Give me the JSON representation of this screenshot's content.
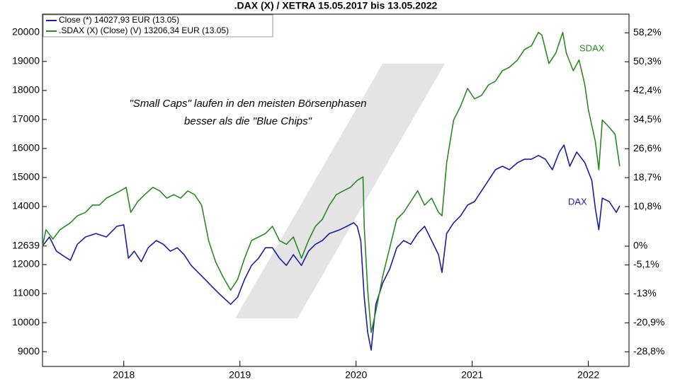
{
  "chart_data": {
    "type": "line",
    "title": ".DAX (X) / XETRA 15.05.2017 bis 13.05.2022",
    "annotations": [
      "\"Small Caps\" laufen in den meisten Börsenphasen",
      "besser als die \"Blue Chips\"",
      "SDAX",
      "DAX"
    ],
    "xlim": [
      2017.3,
      2022.35
    ],
    "xticks": [
      2018,
      2019,
      2020,
      2021,
      2022
    ],
    "ylim": [
      8490,
      20630
    ],
    "yticks": [
      9000,
      10000,
      11000,
      12000,
      12639,
      14000,
      15000,
      16000,
      17000,
      18000,
      19000,
      20000
    ],
    "y2lim": [
      -32.8,
      63.3
    ],
    "y2ticks": [
      {
        "value": 58.2,
        "label": "58,2%"
      },
      {
        "value": 50.3,
        "label": "50,3%"
      },
      {
        "value": 42.4,
        "label": "42,4%"
      },
      {
        "value": 34.5,
        "label": "34,5%"
      },
      {
        "value": 26.6,
        "label": "26,6%"
      },
      {
        "value": 18.7,
        "label": "18,7%"
      },
      {
        "value": 10.8,
        "label": "10,8%"
      },
      {
        "value": 0,
        "label": "0%"
      },
      {
        "value": -5.1,
        "label": "-5,1%"
      },
      {
        "value": -13,
        "label": "-13%"
      },
      {
        "value": -20.9,
        "label": "-20,9%"
      },
      {
        "value": -28.8,
        "label": "-28,8%"
      }
    ],
    "series": [
      {
        "name": "Close (*) 14027,93 EUR (13.05)",
        "color": "#1c1ca8",
        "x": [
          2017.3,
          2017.36,
          2017.42,
          2017.48,
          2017.54,
          2017.6,
          2017.67,
          2017.76,
          2017.85,
          2017.94,
          2018.0,
          2018.04,
          2018.09,
          2018.15,
          2018.21,
          2018.28,
          2018.34,
          2018.4,
          2018.46,
          2018.52,
          2018.58,
          2018.64,
          2018.7,
          2018.76,
          2018.82,
          2018.92,
          2018.98,
          2019.04,
          2019.1,
          2019.16,
          2019.22,
          2019.28,
          2019.34,
          2019.4,
          2019.46,
          2019.53,
          2019.59,
          2019.65,
          2019.71,
          2019.77,
          2019.86,
          2019.92,
          2019.98,
          2020.01,
          2020.04,
          2020.07,
          2020.1,
          2020.13,
          2020.17,
          2020.23,
          2020.29,
          2020.35,
          2020.41,
          2020.47,
          2020.53,
          2020.59,
          2020.65,
          2020.71,
          2020.74,
          2020.78,
          2020.84,
          2020.9,
          2020.96,
          2021.02,
          2021.08,
          2021.14,
          2021.2,
          2021.26,
          2021.32,
          2021.39,
          2021.45,
          2021.51,
          2021.57,
          2021.63,
          2021.69,
          2021.75,
          2021.79,
          2021.84,
          2021.9,
          2021.97,
          2022.03,
          2022.06,
          2022.09,
          2022.12,
          2022.18,
          2022.24,
          2022.27
        ],
        "values": [
          12639,
          12950,
          12460,
          12300,
          12150,
          12700,
          12950,
          13070,
          12950,
          13320,
          13370,
          12220,
          12460,
          12100,
          12580,
          12830,
          12700,
          12460,
          12580,
          12340,
          11970,
          11730,
          11490,
          11240,
          11000,
          10630,
          10880,
          11490,
          11970,
          12220,
          12580,
          12580,
          12220,
          11970,
          12340,
          11970,
          12460,
          12700,
          12830,
          13070,
          13200,
          13320,
          13440,
          13320,
          12830,
          10880,
          9660,
          9050,
          10630,
          11370,
          11850,
          12580,
          12830,
          12700,
          13070,
          13320,
          12830,
          12340,
          11730,
          13070,
          13440,
          13680,
          14050,
          14170,
          14540,
          14900,
          15270,
          15390,
          15270,
          15510,
          15630,
          15630,
          15760,
          15630,
          15270,
          15880,
          16120,
          15390,
          15880,
          15510,
          14900,
          13930,
          13200,
          14290,
          14170,
          13800,
          14030
        ]
      },
      {
        "name": ".SDAX (X) (Close) (V) 13206,34 EUR (13.05)",
        "color": "#2a8a22",
        "x": [
          2017.3,
          2017.33,
          2017.39,
          2017.45,
          2017.54,
          2017.6,
          2017.67,
          2017.73,
          2017.79,
          2017.85,
          2017.91,
          2017.97,
          2018.02,
          2018.06,
          2018.12,
          2018.18,
          2018.25,
          2018.31,
          2018.37,
          2018.43,
          2018.49,
          2018.55,
          2018.61,
          2018.67,
          2018.73,
          2018.79,
          2018.85,
          2018.92,
          2018.98,
          2019.04,
          2019.1,
          2019.16,
          2019.22,
          2019.28,
          2019.34,
          2019.4,
          2019.46,
          2019.53,
          2019.59,
          2019.65,
          2019.71,
          2019.77,
          2019.83,
          2019.89,
          2019.95,
          2020.01,
          2020.06,
          2020.07,
          2020.1,
          2020.13,
          2020.17,
          2020.23,
          2020.29,
          2020.35,
          2020.41,
          2020.47,
          2020.53,
          2020.59,
          2020.65,
          2020.71,
          2020.74,
          2020.78,
          2020.84,
          2020.9,
          2020.96,
          2021.02,
          2021.08,
          2021.14,
          2021.2,
          2021.26,
          2021.32,
          2021.39,
          2021.45,
          2021.51,
          2021.57,
          2021.6,
          2021.66,
          2021.72,
          2021.78,
          2021.81,
          2021.87,
          2021.92,
          2021.97,
          2022.0,
          2022.06,
          2022.09,
          2022.12,
          2022.18,
          2022.23,
          2022.27
        ],
        "values": [
          12639,
          13200,
          12880,
          13200,
          13440,
          13680,
          13800,
          14050,
          14050,
          14290,
          14410,
          14540,
          14660,
          13800,
          14170,
          14410,
          14660,
          14540,
          14290,
          14410,
          14290,
          14540,
          14410,
          14050,
          12830,
          12100,
          11610,
          11120,
          11490,
          12220,
          12830,
          12950,
          13070,
          13320,
          12830,
          12700,
          12950,
          12220,
          12830,
          13320,
          13560,
          14050,
          14410,
          14540,
          14660,
          14900,
          15020,
          13320,
          11120,
          9660,
          10390,
          11610,
          12580,
          13560,
          13800,
          14170,
          14540,
          14050,
          14290,
          13800,
          13680,
          15510,
          16980,
          17460,
          18070,
          17710,
          17830,
          18190,
          18320,
          18680,
          18800,
          19050,
          19410,
          19540,
          20000,
          19910,
          18930,
          19290,
          20000,
          19290,
          18680,
          19050,
          18190,
          17340,
          16240,
          15270,
          16980,
          16730,
          16490,
          15390
        ]
      }
    ]
  }
}
